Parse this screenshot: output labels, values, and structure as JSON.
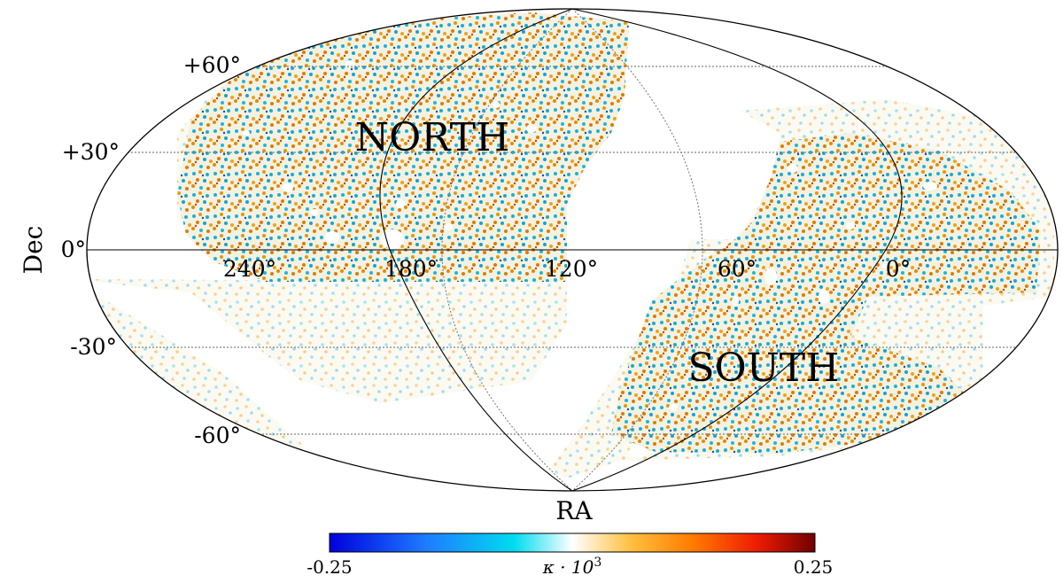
{
  "chart_data": {
    "type": "heatmap",
    "projection": "mollweide",
    "xlabel": "RA",
    "ylabel": "Dec",
    "ra_ticks": [
      "240°",
      "180°",
      "120°",
      "60°",
      "0°"
    ],
    "ra_tick_values": [
      240,
      180,
      120,
      60,
      0
    ],
    "dec_ticks": [
      "+60°",
      "+30°",
      "0°",
      "-30°",
      "-60°"
    ],
    "dec_tick_values": [
      60,
      30,
      0,
      -30,
      -60
    ],
    "regions": [
      {
        "label": "NORTH",
        "ra": 172,
        "dec": 38
      },
      {
        "label": "SOUTH",
        "ra": 41,
        "dec": -40
      }
    ],
    "colorbar": {
      "label_html": "κ · 10³",
      "label_plain": "κ · 10",
      "label_sup": "3",
      "min": -0.25,
      "max": 0.25,
      "min_label": "-0.25",
      "max_label": "0.25",
      "colormap": [
        "#0000dd",
        "#1e7cff",
        "#00dcef",
        "#ffffff",
        "#ffc040",
        "#ff7a00",
        "#ee1c00",
        "#700000"
      ]
    },
    "grid": true
  }
}
